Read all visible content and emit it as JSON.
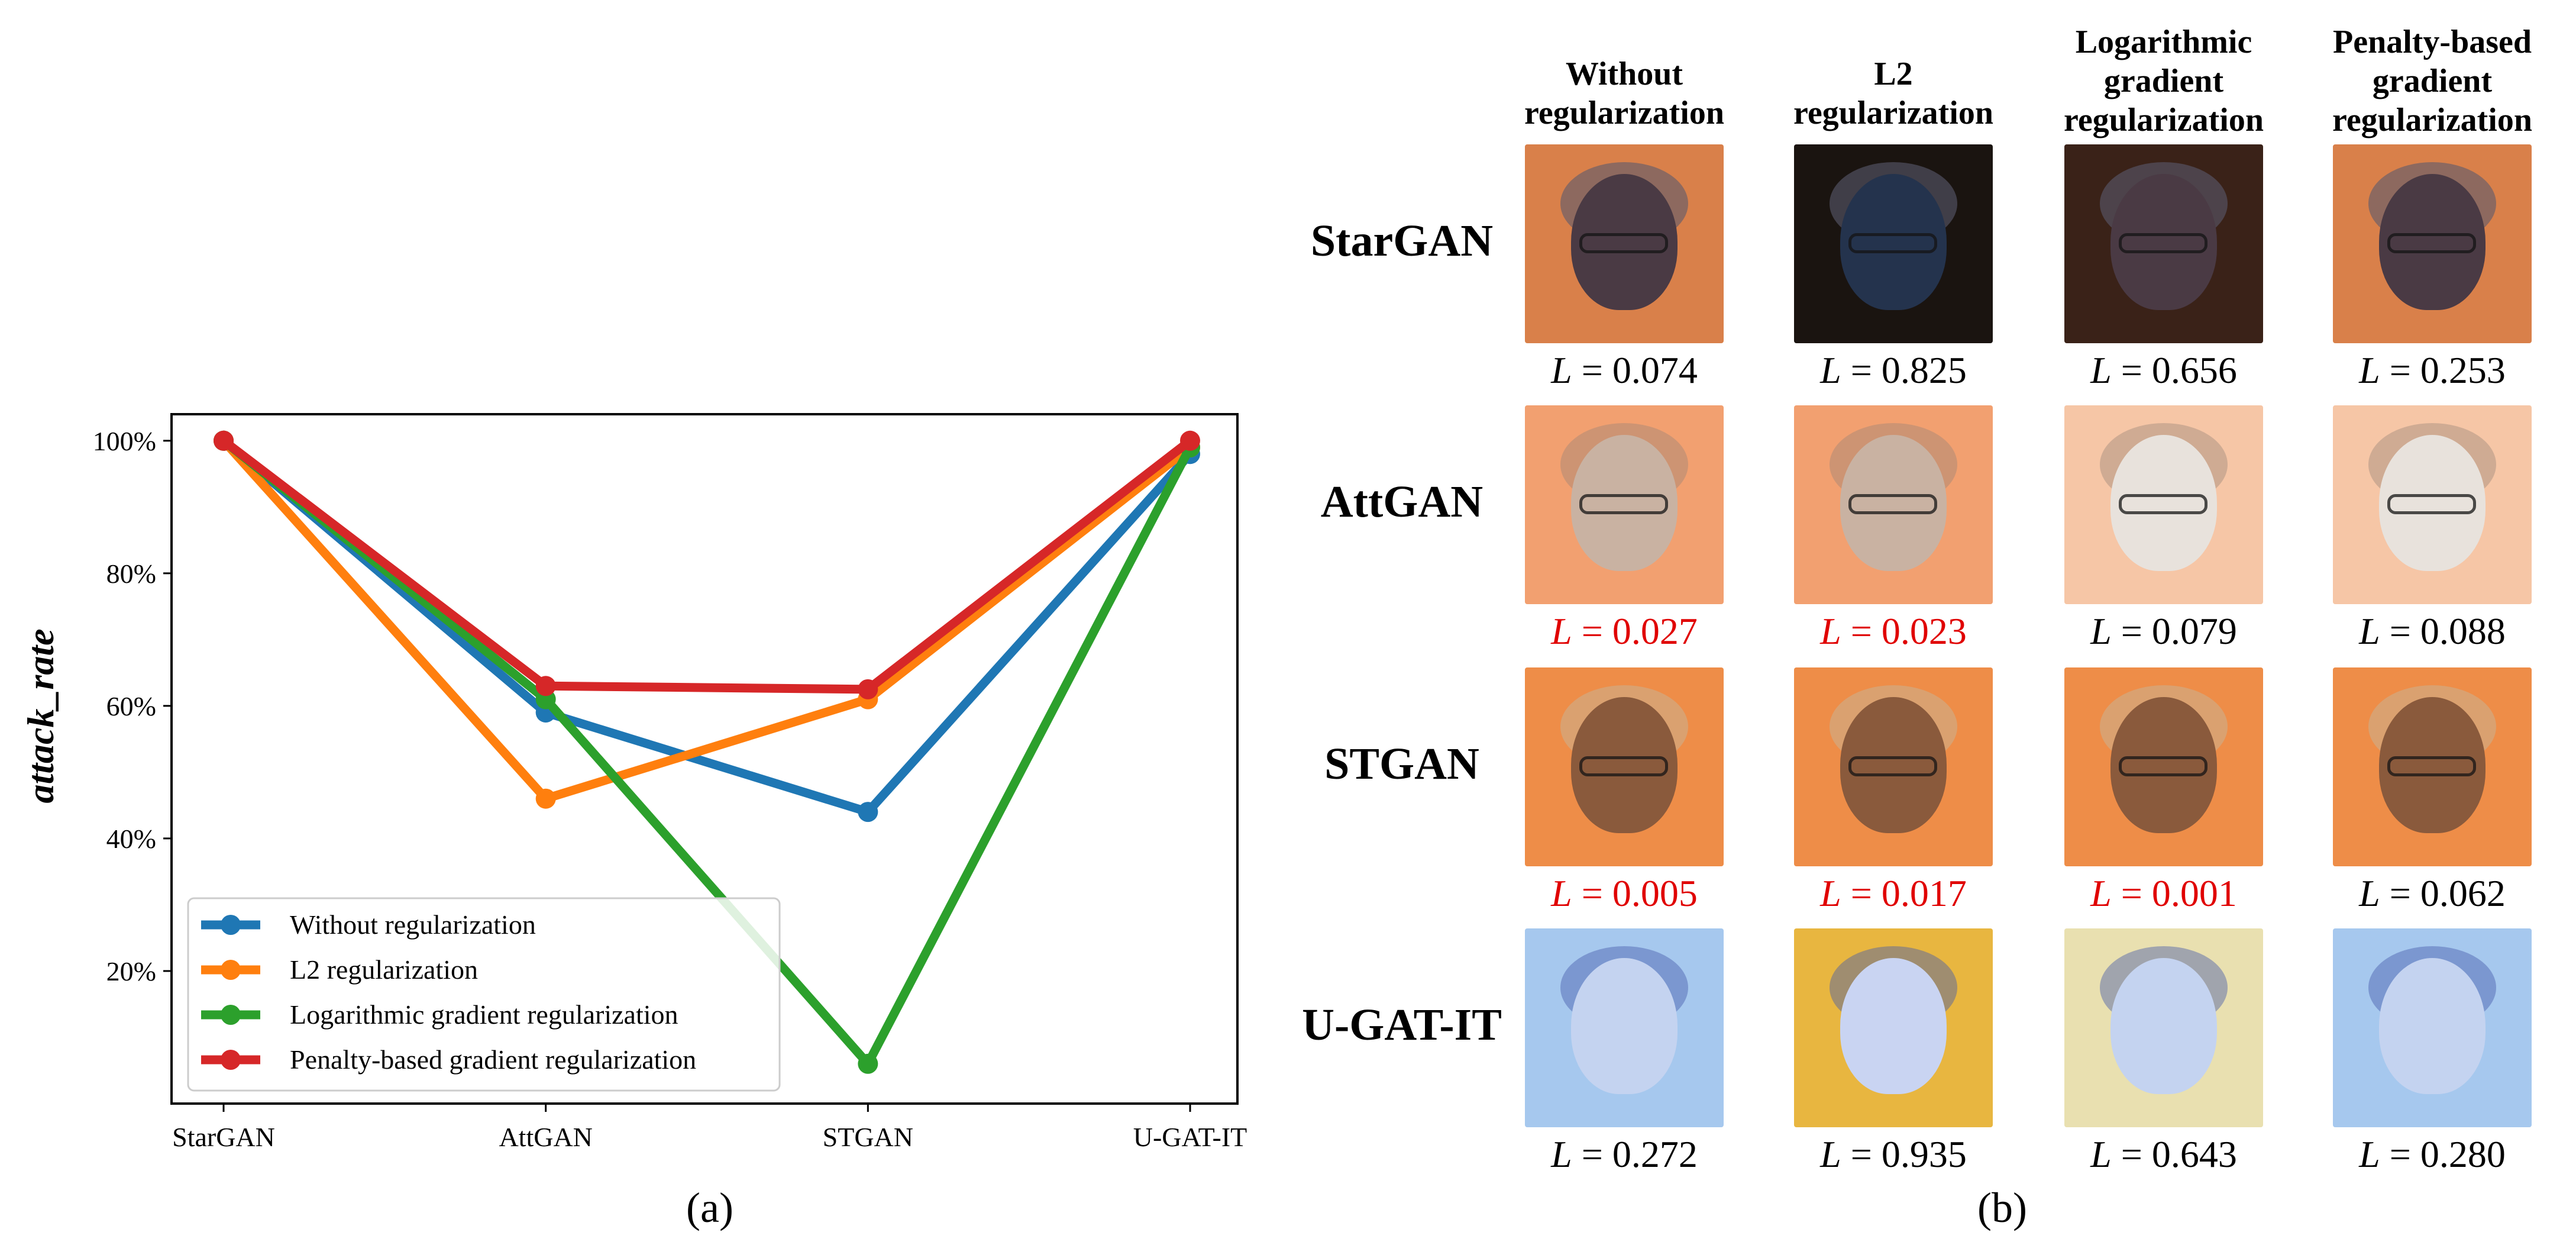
{
  "chart_data": {
    "type": "line",
    "categories": [
      "StarGAN",
      "AttGAN",
      "STGAN",
      "U-GAT-IT"
    ],
    "ylabel": "attack_rate",
    "xlabel": "",
    "ylim": [
      0,
      104
    ],
    "yticks": [
      20,
      40,
      60,
      80,
      100
    ],
    "ytick_labels": [
      "20%",
      "40%",
      "60%",
      "80%",
      "100%"
    ],
    "legend_position": "lower-left",
    "grid": false,
    "series": [
      {
        "name": "Without regularization",
        "color": "#1f77b4",
        "values": [
          100,
          59,
          44,
          98
        ]
      },
      {
        "name": "L2 regularization",
        "color": "#ff7f0e",
        "values": [
          100,
          46,
          61,
          99
        ]
      },
      {
        "name": "Logarithmic gradient regularization",
        "color": "#2ca02c",
        "values": [
          100,
          61,
          6,
          99
        ]
      },
      {
        "name": "Penalty-based gradient regularization",
        "color": "#d62728",
        "values": [
          100,
          63,
          62.5,
          100
        ]
      }
    ]
  },
  "captions": {
    "a": "(a)",
    "b": "(b)"
  },
  "grid": {
    "columns": [
      "Without\nregularization",
      "L2\nregularization",
      "Logarithmic\ngradient\nregularization",
      "Penalty-based\ngradient\nregularization"
    ],
    "rows": [
      {
        "model": "StarGAN",
        "losses": [
          "0.074",
          "0.825",
          "0.656",
          "0.253"
        ],
        "highlight": [
          false,
          false,
          false,
          false
        ]
      },
      {
        "model": "AttGAN",
        "losses": [
          "0.027",
          "0.023",
          "0.079",
          "0.088"
        ],
        "highlight": [
          true,
          true,
          false,
          false
        ]
      },
      {
        "model": "STGAN",
        "losses": [
          "0.005",
          "0.017",
          "0.001",
          "0.062"
        ],
        "highlight": [
          true,
          true,
          true,
          false
        ]
      },
      {
        "model": "U-GAT-IT",
        "losses": [
          "0.272",
          "0.935",
          "0.643",
          "0.280"
        ],
        "highlight": [
          false,
          false,
          false,
          false
        ]
      }
    ],
    "loss_symbol": "L",
    "highlight_color": "#e00000"
  }
}
